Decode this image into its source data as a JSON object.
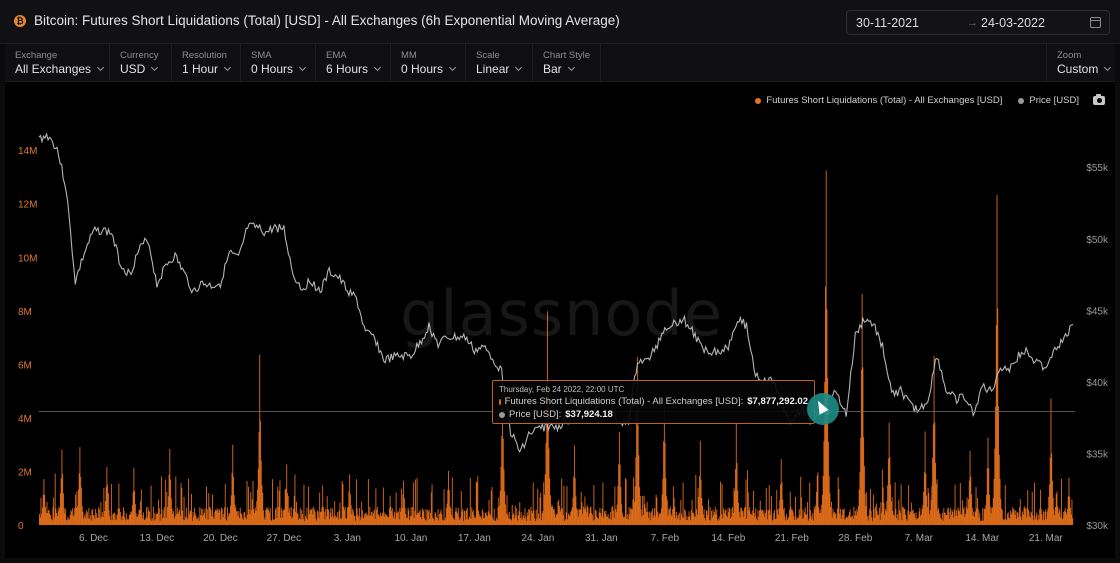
{
  "header": {
    "title": "Bitcoin: Futures Short Liquidations (Total) [USD] - All Exchanges (6h Exponential Moving Average)",
    "coin_symbol": "₿",
    "date_start": "30-11-2021",
    "date_arrow": "→",
    "date_end": "24-03-2022"
  },
  "controls": [
    {
      "label": "Exchange",
      "value": "All Exchanges"
    },
    {
      "label": "Currency",
      "value": "USD"
    },
    {
      "label": "Resolution",
      "value": "1 Hour"
    },
    {
      "label": "SMA",
      "value": "0 Hours"
    },
    {
      "label": "EMA",
      "value": "6 Hours"
    },
    {
      "label": "MM",
      "value": "0 Hours"
    },
    {
      "label": "Scale",
      "value": "Linear"
    },
    {
      "label": "Chart Style",
      "value": "Bar"
    },
    {
      "label": "Zoom",
      "value": "Custom"
    }
  ],
  "legend": {
    "liquidations": "Futures Short Liquidations (Total) - All Exchanges [USD]",
    "price": "Price [USD]"
  },
  "watermark": "glassnode",
  "tooltip": {
    "time": "Thursday, Feb 24 2022, 22:00 UTC",
    "liq_label": "Futures Short Liquidations (Total) - All Exchanges [USD]:",
    "liq_value": "$7,877,292.02",
    "price_label": "Price [USD]:",
    "price_value": "$37,924.18"
  },
  "colors": {
    "liquidations": "#e8711a",
    "price": "#c9c9c9",
    "tooltip_border": "#b8651f",
    "cursor": "#1c8a86",
    "coin": "#e8892b"
  },
  "icons": [
    "bitcoin-icon",
    "calendar-icon",
    "chevron-down-icon",
    "camera-icon",
    "cursor-pointer-icon"
  ],
  "chart_data": {
    "type": "bar",
    "title": "Bitcoin: Futures Short Liquidations (Total) [USD] - All Exchanges (6h Exponential Moving Average)",
    "left_axis": {
      "ticks": [
        0,
        2000000,
        4000000,
        6000000,
        8000000,
        10000000,
        12000000,
        14000000
      ],
      "tick_labels": [
        "0",
        "2M",
        "4M",
        "6M",
        "8M",
        "10M",
        "12M",
        "14M"
      ],
      "range": [
        0,
        15500000
      ]
    },
    "right_axis": {
      "ticks": [
        30000,
        35000,
        40000,
        45000,
        50000,
        55000
      ],
      "tick_labels": [
        "$30k",
        "$35k",
        "$40k",
        "$45k",
        "$50k",
        "$55k"
      ],
      "range": [
        30000,
        59000
      ]
    },
    "x_ticks": [
      "6. Dec",
      "13. Dec",
      "20. Dec",
      "27. Dec",
      "3. Jan",
      "10. Jan",
      "17. Jan",
      "24. Jan",
      "31. Jan",
      "7. Feb",
      "14. Feb",
      "21. Feb",
      "28. Feb",
      "7. Mar",
      "14. Mar",
      "21. Mar"
    ],
    "x_tick_dates": [
      "2021-12-06",
      "2021-12-13",
      "2021-12-20",
      "2021-12-27",
      "2022-01-03",
      "2022-01-10",
      "2022-01-17",
      "2022-01-24",
      "2022-01-31",
      "2022-02-07",
      "2022-02-14",
      "2022-02-21",
      "2022-02-28",
      "2022-03-07",
      "2022-03-14",
      "2022-03-21"
    ],
    "x_range": [
      "2021-11-30",
      "2022-03-24"
    ],
    "grid": false,
    "legend_position": "top-right",
    "series": [
      {
        "name": "Futures Short Liquidations (Total) - All Exchanges [USD]",
        "type": "bar",
        "axis": "left",
        "color": "#e8711a",
        "baseline_level": 600000,
        "noise_level": 1000000,
        "spikes": [
          {
            "date": "2021-11-30",
            "value": 2000000
          },
          {
            "date": "2021-12-02",
            "value": 3300000
          },
          {
            "date": "2021-12-04",
            "value": 3200000
          },
          {
            "date": "2021-12-07",
            "value": 2500000
          },
          {
            "date": "2021-12-10",
            "value": 2200000
          },
          {
            "date": "2021-12-14",
            "value": 3100000
          },
          {
            "date": "2021-12-21",
            "value": 3400000
          },
          {
            "date": "2021-12-24",
            "value": 6700000
          },
          {
            "date": "2021-12-27",
            "value": 2300000
          },
          {
            "date": "2022-01-03",
            "value": 2100000
          },
          {
            "date": "2022-01-09",
            "value": 1900000
          },
          {
            "date": "2022-01-14",
            "value": 2200000
          },
          {
            "date": "2022-01-20",
            "value": 6100000
          },
          {
            "date": "2022-01-25",
            "value": 9000000
          },
          {
            "date": "2022-01-28",
            "value": 3100000
          },
          {
            "date": "2022-02-02",
            "value": 4000000
          },
          {
            "date": "2022-02-04",
            "value": 7200000
          },
          {
            "date": "2022-02-07",
            "value": 5200000
          },
          {
            "date": "2022-02-11",
            "value": 3200000
          },
          {
            "date": "2022-02-15",
            "value": 3900000
          },
          {
            "date": "2022-02-20",
            "value": 2800000
          },
          {
            "date": "2022-02-24",
            "value": 2100000
          },
          {
            "date": "2022-02-25",
            "value": 15500000
          },
          {
            "date": "2022-03-01",
            "value": 10100000
          },
          {
            "date": "2022-03-04",
            "value": 4200000
          },
          {
            "date": "2022-03-08",
            "value": 3500000
          },
          {
            "date": "2022-03-09",
            "value": 7000000
          },
          {
            "date": "2022-03-13",
            "value": 2900000
          },
          {
            "date": "2022-03-15",
            "value": 3500000
          },
          {
            "date": "2022-03-16",
            "value": 13700000
          },
          {
            "date": "2022-03-22",
            "value": 4800000
          },
          {
            "date": "2022-03-24",
            "value": 1900000
          }
        ]
      },
      {
        "name": "Price [USD]",
        "type": "line",
        "axis": "right",
        "color": "#c9c9c9",
        "points": [
          {
            "date": "2021-11-30",
            "value": 57000
          },
          {
            "date": "2021-12-01",
            "value": 57200
          },
          {
            "date": "2021-12-02",
            "value": 56300
          },
          {
            "date": "2021-12-03",
            "value": 53500
          },
          {
            "date": "2021-12-04",
            "value": 47000
          },
          {
            "date": "2021-12-05",
            "value": 49000
          },
          {
            "date": "2021-12-06",
            "value": 50500
          },
          {
            "date": "2021-12-07",
            "value": 50600
          },
          {
            "date": "2021-12-08",
            "value": 50400
          },
          {
            "date": "2021-12-09",
            "value": 48200
          },
          {
            "date": "2021-12-10",
            "value": 47500
          },
          {
            "date": "2021-12-11",
            "value": 49200
          },
          {
            "date": "2021-12-12",
            "value": 50000
          },
          {
            "date": "2021-12-13",
            "value": 46800
          },
          {
            "date": "2021-12-14",
            "value": 48200
          },
          {
            "date": "2021-12-15",
            "value": 48800
          },
          {
            "date": "2021-12-16",
            "value": 47600
          },
          {
            "date": "2021-12-17",
            "value": 46300
          },
          {
            "date": "2021-12-18",
            "value": 46900
          },
          {
            "date": "2021-12-19",
            "value": 46700
          },
          {
            "date": "2021-12-20",
            "value": 46900
          },
          {
            "date": "2021-12-21",
            "value": 49000
          },
          {
            "date": "2021-12-22",
            "value": 48600
          },
          {
            "date": "2021-12-23",
            "value": 50800
          },
          {
            "date": "2021-12-24",
            "value": 50800
          },
          {
            "date": "2021-12-25",
            "value": 50400
          },
          {
            "date": "2021-12-26",
            "value": 50800
          },
          {
            "date": "2021-12-27",
            "value": 50700
          },
          {
            "date": "2021-12-28",
            "value": 47500
          },
          {
            "date": "2021-12-29",
            "value": 46500
          },
          {
            "date": "2021-12-30",
            "value": 47100
          },
          {
            "date": "2021-12-31",
            "value": 46300
          },
          {
            "date": "2022-01-01",
            "value": 47700
          },
          {
            "date": "2022-01-02",
            "value": 47300
          },
          {
            "date": "2022-01-03",
            "value": 46400
          },
          {
            "date": "2022-01-04",
            "value": 45800
          },
          {
            "date": "2022-01-05",
            "value": 43400
          },
          {
            "date": "2022-01-06",
            "value": 43100
          },
          {
            "date": "2022-01-07",
            "value": 41500
          },
          {
            "date": "2022-01-08",
            "value": 41700
          },
          {
            "date": "2022-01-09",
            "value": 41800
          },
          {
            "date": "2022-01-10",
            "value": 41800
          },
          {
            "date": "2022-01-11",
            "value": 42700
          },
          {
            "date": "2022-01-12",
            "value": 43900
          },
          {
            "date": "2022-01-13",
            "value": 42600
          },
          {
            "date": "2022-01-14",
            "value": 43100
          },
          {
            "date": "2022-01-15",
            "value": 43100
          },
          {
            "date": "2022-01-16",
            "value": 43100
          },
          {
            "date": "2022-01-17",
            "value": 42200
          },
          {
            "date": "2022-01-18",
            "value": 42400
          },
          {
            "date": "2022-01-19",
            "value": 41700
          },
          {
            "date": "2022-01-20",
            "value": 40700
          },
          {
            "date": "2022-01-21",
            "value": 36500
          },
          {
            "date": "2022-01-22",
            "value": 35100
          },
          {
            "date": "2022-01-23",
            "value": 36300
          },
          {
            "date": "2022-01-24",
            "value": 36700
          },
          {
            "date": "2022-01-25",
            "value": 36900
          },
          {
            "date": "2022-01-26",
            "value": 36800
          },
          {
            "date": "2022-01-27",
            "value": 37200
          },
          {
            "date": "2022-01-28",
            "value": 37700
          },
          {
            "date": "2022-01-29",
            "value": 38200
          },
          {
            "date": "2022-01-30",
            "value": 37900
          },
          {
            "date": "2022-01-31",
            "value": 38500
          },
          {
            "date": "2022-02-01",
            "value": 38700
          },
          {
            "date": "2022-02-02",
            "value": 36900
          },
          {
            "date": "2022-02-03",
            "value": 37300
          },
          {
            "date": "2022-02-04",
            "value": 41500
          },
          {
            "date": "2022-02-05",
            "value": 41400
          },
          {
            "date": "2022-02-06",
            "value": 42400
          },
          {
            "date": "2022-02-07",
            "value": 43800
          },
          {
            "date": "2022-02-08",
            "value": 44100
          },
          {
            "date": "2022-02-09",
            "value": 44400
          },
          {
            "date": "2022-02-10",
            "value": 43600
          },
          {
            "date": "2022-02-11",
            "value": 42400
          },
          {
            "date": "2022-02-12",
            "value": 42200
          },
          {
            "date": "2022-02-13",
            "value": 42100
          },
          {
            "date": "2022-02-14",
            "value": 42500
          },
          {
            "date": "2022-02-15",
            "value": 44500
          },
          {
            "date": "2022-02-16",
            "value": 43900
          },
          {
            "date": "2022-02-17",
            "value": 40500
          },
          {
            "date": "2022-02-18",
            "value": 40000
          },
          {
            "date": "2022-02-19",
            "value": 40100
          },
          {
            "date": "2022-02-20",
            "value": 38400
          },
          {
            "date": "2022-02-21",
            "value": 37000
          },
          {
            "date": "2022-02-22",
            "value": 38200
          },
          {
            "date": "2022-02-23",
            "value": 37300
          },
          {
            "date": "2022-02-24",
            "value": 37900
          },
          {
            "date": "2022-02-25",
            "value": 39200
          },
          {
            "date": "2022-02-26",
            "value": 39100
          },
          {
            "date": "2022-02-27",
            "value": 37700
          },
          {
            "date": "2022-02-28",
            "value": 43200
          },
          {
            "date": "2022-03-01",
            "value": 44400
          },
          {
            "date": "2022-03-02",
            "value": 44000
          },
          {
            "date": "2022-03-03",
            "value": 42500
          },
          {
            "date": "2022-03-04",
            "value": 39100
          },
          {
            "date": "2022-03-05",
            "value": 39400
          },
          {
            "date": "2022-03-06",
            "value": 38400
          },
          {
            "date": "2022-03-07",
            "value": 38000
          },
          {
            "date": "2022-03-08",
            "value": 38700
          },
          {
            "date": "2022-03-09",
            "value": 41900
          },
          {
            "date": "2022-03-10",
            "value": 39400
          },
          {
            "date": "2022-03-11",
            "value": 38800
          },
          {
            "date": "2022-03-12",
            "value": 38900
          },
          {
            "date": "2022-03-13",
            "value": 37800
          },
          {
            "date": "2022-03-14",
            "value": 39700
          },
          {
            "date": "2022-03-15",
            "value": 39300
          },
          {
            "date": "2022-03-16",
            "value": 41100
          },
          {
            "date": "2022-03-17",
            "value": 40900
          },
          {
            "date": "2022-03-18",
            "value": 41800
          },
          {
            "date": "2022-03-19",
            "value": 42200
          },
          {
            "date": "2022-03-20",
            "value": 41300
          },
          {
            "date": "2022-03-21",
            "value": 41000
          },
          {
            "date": "2022-03-22",
            "value": 42400
          },
          {
            "date": "2022-03-23",
            "value": 42900
          },
          {
            "date": "2022-03-24",
            "value": 44000
          }
        ]
      }
    ],
    "crosshair": {
      "date": "2022-02-24T22:00",
      "price": 37924.18,
      "liquidations": 7877292.02
    }
  }
}
